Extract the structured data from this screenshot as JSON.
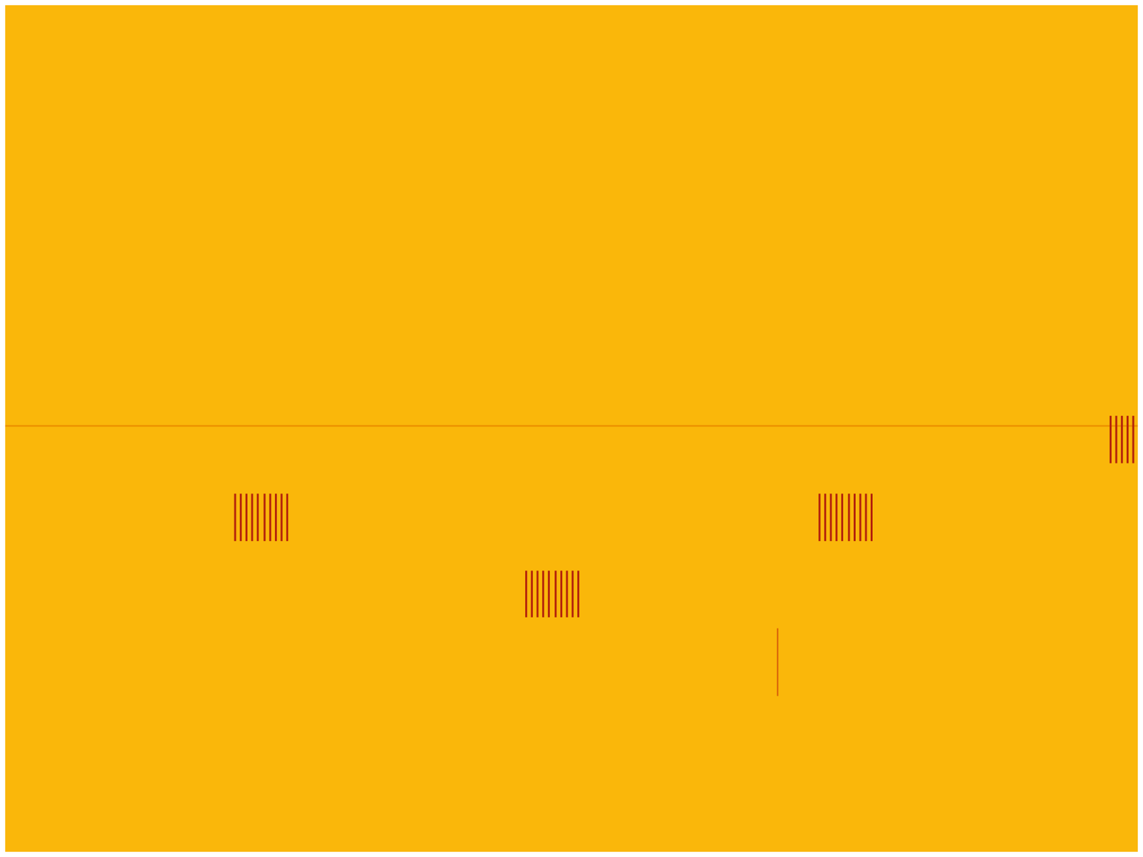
{
  "chart_data": {
    "type": "spectrogram",
    "xlim": [
      0,
      100
    ],
    "ylim": [
      0,
      100
    ],
    "tick_labels": false,
    "grid": false,
    "color": "#fab70a",
    "bursts": [
      {
        "x": [
          20.3,
          20.8,
          21.3,
          21.8,
          22.3,
          22.9,
          23.4,
          23.9,
          24.4,
          24.9
        ],
        "y": [
          36.7,
          42.3
        ],
        "color": "#b3220c"
      },
      {
        "x": [
          46.0,
          46.5,
          47.0,
          47.5,
          48.0,
          48.6,
          49.1,
          49.6,
          50.1,
          50.6
        ],
        "y": [
          27.7,
          33.2
        ],
        "color": "#b3220c"
      },
      {
        "x": [
          71.9,
          72.4,
          72.9,
          73.4,
          73.9,
          74.5,
          75.0,
          75.5,
          76.0,
          76.5
        ],
        "y": [
          36.7,
          42.3
        ],
        "color": "#b3220c"
      },
      {
        "x": [
          97.6,
          98.1,
          98.6,
          99.1,
          99.6
        ],
        "y": [
          45.9,
          51.5
        ],
        "color": "#b3220c"
      }
    ],
    "tones": [
      {
        "x": [
          0,
          100
        ],
        "y": 50.3,
        "color": "#ef9700"
      }
    ],
    "clicks": [
      {
        "x": 68.2,
        "y": [
          18.4,
          26.4
        ],
        "color": "#d45a0a"
      }
    ]
  }
}
